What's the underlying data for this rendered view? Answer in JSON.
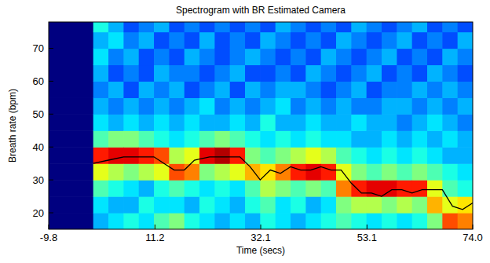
{
  "chart_data": {
    "type": "heatmap",
    "title": "Spectrogram with BR Estimated Camera",
    "x_label": "Time (secs)",
    "y_label": "Breath rate (bpm)",
    "xlim": [
      -9.8,
      74.0
    ],
    "ylim": [
      15,
      78
    ],
    "xticks": [
      -9.8,
      11.2,
      32.1,
      53.1,
      {
        "value": 74,
        "label": "74.0"
      }
    ],
    "yticks": [
      20,
      30,
      40,
      50,
      60,
      70
    ],
    "x_edges": [
      -9.8,
      -1,
      2,
      5,
      8,
      11,
      14,
      17,
      20,
      23,
      26,
      29,
      32,
      35,
      38,
      41,
      44,
      47,
      50,
      53,
      56,
      59,
      62,
      65,
      68,
      71,
      74
    ],
    "y_edges": [
      15,
      20,
      25,
      30,
      35,
      40,
      45,
      50,
      55,
      60,
      65,
      70,
      75,
      80
    ],
    "color_range": [
      0,
      1
    ],
    "cells": [
      [
        0,
        0,
        0,
        0,
        0,
        0,
        0,
        0,
        0,
        0,
        0,
        0,
        0
      ],
      [
        0.3,
        0.35,
        0.45,
        0.6,
        0.85,
        0.45,
        0.35,
        0.3,
        0.25,
        0.3,
        0.35,
        0.3,
        0.4
      ],
      [
        0.35,
        0.3,
        0.4,
        0.55,
        0.9,
        0.5,
        0.3,
        0.25,
        0.3,
        0.2,
        0.25,
        0.35,
        0.3
      ],
      [
        0.4,
        0.3,
        0.35,
        0.5,
        0.9,
        0.5,
        0.35,
        0.3,
        0.2,
        0.25,
        0.3,
        0.25,
        0.2
      ],
      [
        0.35,
        0.4,
        0.3,
        0.55,
        0.85,
        0.45,
        0.3,
        0.25,
        0.3,
        0.2,
        0.2,
        0.3,
        0.25
      ],
      [
        0.45,
        0.35,
        0.4,
        0.6,
        0.8,
        0.4,
        0.35,
        0.3,
        0.25,
        0.3,
        0.25,
        0.2,
        0.3
      ],
      [
        0.5,
        0.35,
        0.45,
        0.8,
        0.55,
        0.35,
        0.3,
        0.25,
        0.3,
        0.25,
        0.2,
        0.25,
        0.2
      ],
      [
        0.4,
        0.3,
        0.4,
        0.75,
        0.6,
        0.4,
        0.35,
        0.3,
        0.2,
        0.25,
        0.3,
        0.2,
        0.25
      ],
      [
        0.35,
        0.4,
        0.35,
        0.5,
        0.9,
        0.45,
        0.3,
        0.35,
        0.25,
        0.2,
        0.25,
        0.3,
        0.2
      ],
      [
        0.3,
        0.35,
        0.4,
        0.55,
        0.95,
        0.5,
        0.3,
        0.25,
        0.3,
        0.25,
        0.2,
        0.2,
        0.25
      ],
      [
        0.35,
        0.3,
        0.35,
        0.6,
        0.85,
        0.45,
        0.35,
        0.3,
        0.2,
        0.3,
        0.25,
        0.25,
        0.2
      ],
      [
        0.3,
        0.4,
        0.45,
        0.7,
        0.5,
        0.4,
        0.3,
        0.25,
        0.3,
        0.2,
        0.3,
        0.2,
        0.25
      ],
      [
        0.4,
        0.45,
        0.55,
        0.65,
        0.45,
        0.35,
        0.4,
        0.3,
        0.25,
        0.2,
        0.25,
        0.3,
        0.2
      ],
      [
        0.35,
        0.35,
        0.5,
        0.75,
        0.5,
        0.4,
        0.3,
        0.35,
        0.3,
        0.25,
        0.2,
        0.25,
        0.3
      ],
      [
        0.3,
        0.4,
        0.45,
        0.85,
        0.55,
        0.35,
        0.3,
        0.25,
        0.3,
        0.2,
        0.25,
        0.2,
        0.25
      ],
      [
        0.35,
        0.3,
        0.5,
        0.9,
        0.6,
        0.4,
        0.35,
        0.3,
        0.25,
        0.3,
        0.2,
        0.25,
        0.2
      ],
      [
        0.4,
        0.35,
        0.45,
        0.85,
        0.55,
        0.35,
        0.3,
        0.25,
        0.2,
        0.25,
        0.3,
        0.2,
        0.25
      ],
      [
        0.45,
        0.5,
        0.75,
        0.6,
        0.45,
        0.35,
        0.3,
        0.3,
        0.25,
        0.2,
        0.25,
        0.3,
        0.2
      ],
      [
        0.4,
        0.55,
        0.85,
        0.5,
        0.4,
        0.3,
        0.35,
        0.25,
        0.3,
        0.25,
        0.2,
        0.25,
        0.3
      ],
      [
        0.35,
        0.55,
        0.9,
        0.45,
        0.35,
        0.3,
        0.3,
        0.25,
        0.2,
        0.3,
        0.25,
        0.2,
        0.25
      ],
      [
        0.4,
        0.5,
        0.9,
        0.5,
        0.4,
        0.35,
        0.3,
        0.3,
        0.25,
        0.2,
        0.3,
        0.25,
        0.2
      ],
      [
        0.35,
        0.55,
        0.85,
        0.45,
        0.35,
        0.3,
        0.25,
        0.3,
        0.25,
        0.25,
        0.2,
        0.3,
        0.25
      ],
      [
        0.4,
        0.5,
        0.85,
        0.5,
        0.4,
        0.35,
        0.3,
        0.25,
        0.3,
        0.2,
        0.25,
        0.2,
        0.3
      ],
      [
        0.5,
        0.7,
        0.6,
        0.45,
        0.35,
        0.3,
        0.35,
        0.3,
        0.25,
        0.3,
        0.2,
        0.25,
        0.2
      ],
      [
        0.8,
        0.6,
        0.45,
        0.4,
        0.3,
        0.35,
        0.3,
        0.25,
        0.3,
        0.25,
        0.3,
        0.2,
        0.25
      ],
      [
        0.75,
        0.65,
        0.4,
        0.35,
        0.3,
        0.3,
        0.25,
        0.3,
        0.25,
        0.2,
        0.25,
        0.3,
        0.2
      ]
    ],
    "series": [
      {
        "type": "line",
        "color": "#000000",
        "x": [
          -1,
          2,
          5,
          8,
          11,
          13,
          15,
          17,
          19,
          22,
          25,
          28,
          30,
          32,
          34,
          36,
          38,
          40,
          42,
          44,
          46,
          48,
          50,
          52,
          54,
          56,
          58,
          60,
          62,
          64,
          66,
          68,
          70,
          72,
          74
        ],
        "values": [
          35,
          36,
          37,
          37,
          37,
          35,
          33,
          33,
          36,
          37,
          37,
          37,
          34,
          30,
          33,
          32,
          34,
          33,
          33,
          34,
          33,
          33,
          29,
          26,
          26,
          25,
          27,
          27,
          26,
          27,
          27,
          27,
          22,
          21,
          23
        ]
      }
    ]
  }
}
